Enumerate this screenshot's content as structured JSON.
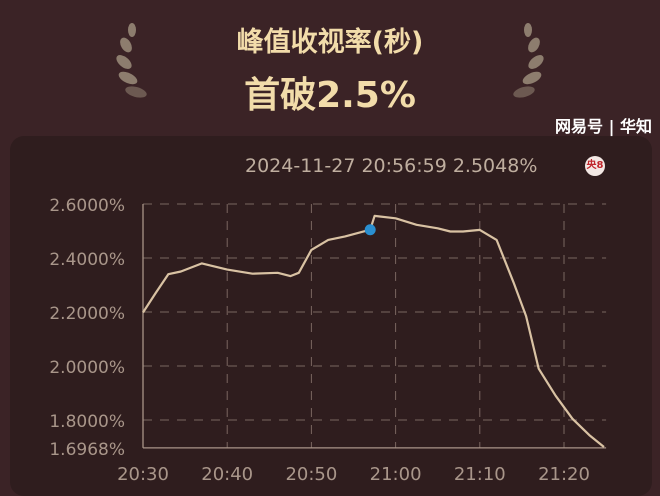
{
  "header": {
    "title": "峰值收视率(秒)",
    "headline": "首破2.5%"
  },
  "tooltip": {
    "datetime": "2024-11-27 20:56:59",
    "value": "2.5048%",
    "channel_badge": "央8"
  },
  "watermark": "网易号 | 华知",
  "colors": {
    "background": "#3b2326",
    "line": "#d9c2a3",
    "marker": "#2a8fd0",
    "title": "#f2dcaa"
  },
  "chart_data": {
    "type": "line",
    "y_ticks": [
      "2.6000%",
      "2.4000%",
      "2.2000%",
      "2.0000%",
      "1.8000%",
      "1.6968%"
    ],
    "y_tick_values": [
      2.6,
      2.4,
      2.2,
      2.0,
      1.8,
      1.6968
    ],
    "x_ticks": [
      "20:30",
      "20:40",
      "20:50",
      "21:00",
      "21:10",
      "21:20"
    ],
    "ylim": [
      1.6968,
      2.6
    ],
    "xlim": [
      "20:30",
      "21:25"
    ],
    "grid": true,
    "highlight": {
      "x": "20:56:59",
      "y": 2.5048
    },
    "x": [
      "20:30",
      "20:31:30",
      "20:33",
      "20:34:30",
      "20:37",
      "20:40",
      "20:43",
      "20:46",
      "20:47:30",
      "20:48:30",
      "20:50",
      "20:52",
      "20:54",
      "20:56:59",
      "20:57:30",
      "21:00",
      "21:02:30",
      "21:05",
      "21:06:30",
      "21:08",
      "21:10",
      "21:12",
      "21:14",
      "21:15:30",
      "21:17",
      "21:19",
      "21:21",
      "21:23",
      "21:24:45"
    ],
    "values": [
      2.198,
      2.27,
      2.34,
      2.35,
      2.38,
      2.357,
      2.342,
      2.345,
      2.333,
      2.345,
      2.43,
      2.467,
      2.48,
      2.5048,
      2.556,
      2.547,
      2.523,
      2.51,
      2.498,
      2.498,
      2.504,
      2.467,
      2.31,
      2.185,
      1.99,
      1.89,
      1.805,
      1.744,
      1.7
    ]
  }
}
